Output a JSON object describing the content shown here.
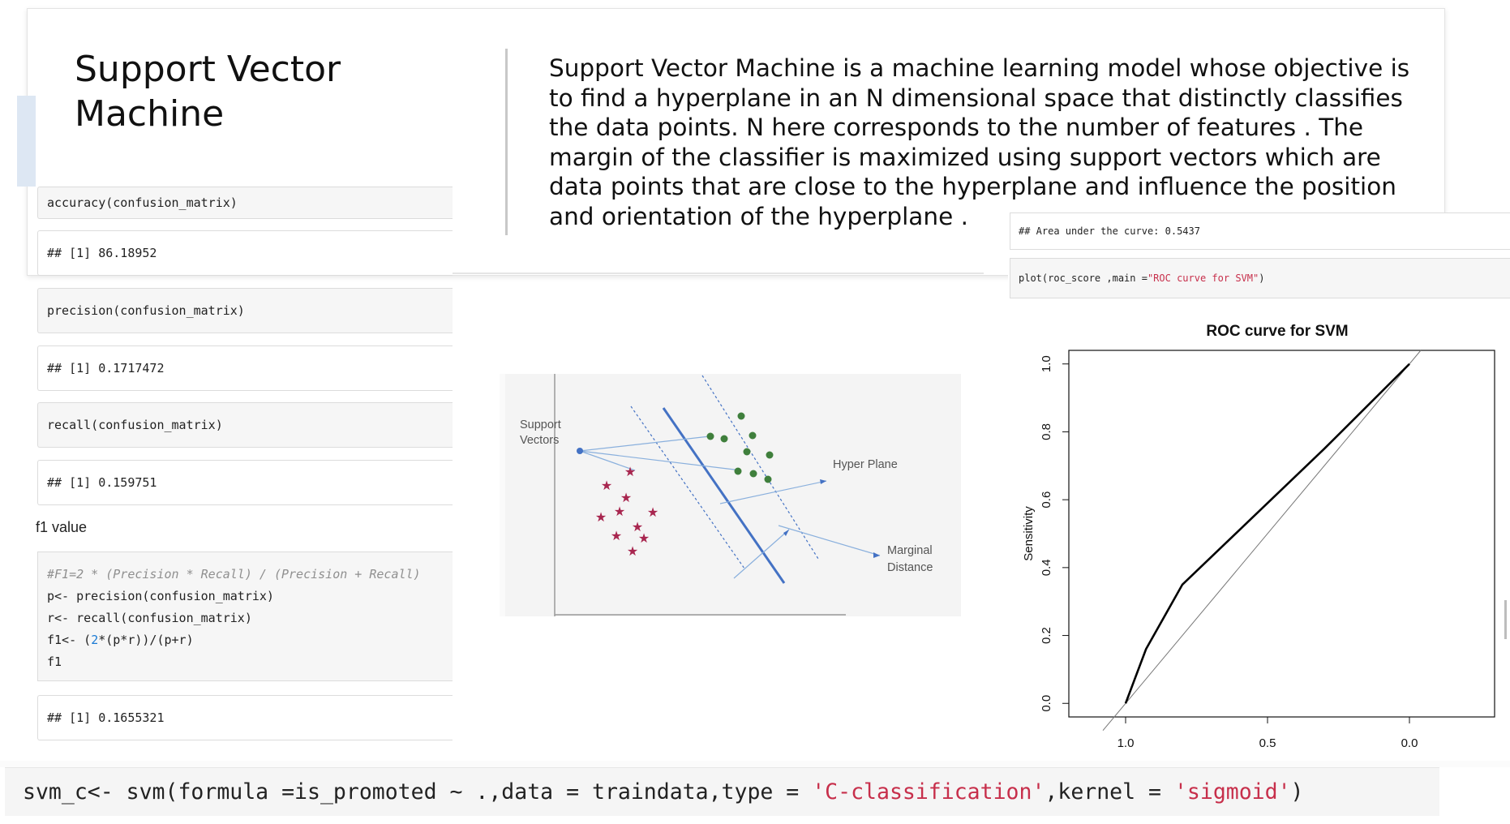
{
  "slide": {
    "title": "Support Vector Machine",
    "description": "Support Vector Machine is a machine learning model whose objective is to find a hyperplane in an N dimensional space that distinctly classifies the data points. N here corresponds to the number of features . The margin of the classifier is maximized using support vectors which are data points that are close to the hyperplane and influence the position and orientation of the hyperplane ."
  },
  "notebook_cells": [
    {
      "kind": "code",
      "text": "accuracy(confusion_matrix)"
    },
    {
      "kind": "output",
      "text": "## [1] 86.18952"
    },
    {
      "kind": "code",
      "text": "precision(confusion_matrix)"
    },
    {
      "kind": "output",
      "text": "## [1] 0.1717472"
    },
    {
      "kind": "code",
      "text": "recall(confusion_matrix)"
    },
    {
      "kind": "output",
      "text": "## [1] 0.159751"
    }
  ],
  "f1": {
    "label": "f1 value",
    "comment": "#F1=2 * (Precision * Recall) / (Precision + Recall)",
    "line_p": "p<- precision(confusion_matrix)",
    "line_r": "r<- recall(confusion_matrix)",
    "line_f1_pre": "f1<- (",
    "line_f1_num": "2",
    "line_f1_post": "*(p*r))/(p+r)",
    "line_f1_var": "f1",
    "output": "## [1] 0.1655321"
  },
  "diagram": {
    "support_vectors_line1": "Support",
    "support_vectors_line2": "Vectors",
    "hyper_plane": "Hyper Plane",
    "marginal_line1": "Marginal",
    "marginal_line2": "Distance"
  },
  "roc": {
    "auc_output": "## Area under the curve: 0.5437",
    "plot_call_pre": "plot(roc_score ,main =",
    "plot_call_str": "\"ROC curve for SVM\"",
    "plot_call_post": ")"
  },
  "chart_data": {
    "type": "line",
    "title": "ROC curve for SVM",
    "ylabel": "Sensitivity",
    "xlabel": "",
    "xlim": [
      1.2,
      -0.3
    ],
    "ylim": [
      -0.04,
      1.04
    ],
    "x_ticks": [
      1.0,
      0.5,
      0.0
    ],
    "y_ticks": [
      0.0,
      0.2,
      0.4,
      0.6,
      0.8,
      1.0
    ],
    "series": [
      {
        "x": [
          1.0,
          0.928,
          0.8,
          0.55,
          0.3,
          0.0
        ],
        "y": [
          0.0,
          0.16,
          0.35,
          0.55,
          0.75,
          1.0
        ]
      }
    ],
    "reference_line": {
      "x": [
        1.0,
        0.0
      ],
      "y": [
        0.0,
        1.0
      ]
    }
  },
  "bottom_code": {
    "pre": "svm_c<- svm(formula =is_promoted ~ .,data = traindata,type = ",
    "str1": "'C-classification'",
    "mid": ",kernel = ",
    "str2": "'sigmoid'",
    "post": ")"
  }
}
